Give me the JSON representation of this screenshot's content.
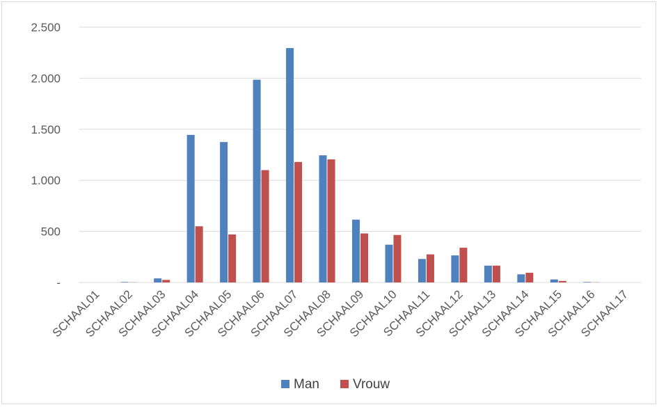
{
  "chart_data": {
    "type": "bar",
    "categories": [
      "SCHAAL01",
      "SCHAAL02",
      "SCHAAL03",
      "SCHAAL04",
      "SCHAAL05",
      "SCHAAL06",
      "SCHAAL07",
      "SCHAAL08",
      "SCHAAL09",
      "SCHAAL10",
      "SCHAAL11",
      "SCHAAL12",
      "SCHAAL13",
      "SCHAAL14",
      "SCHAAL15",
      "SCHAAL16",
      "SCHAAL17"
    ],
    "series": [
      {
        "name": "Man",
        "color": "#4f81bd",
        "values": [
          0,
          5,
          40,
          1445,
          1375,
          1985,
          2295,
          1245,
          615,
          370,
          230,
          265,
          165,
          80,
          30,
          5,
          0
        ]
      },
      {
        "name": "Vrouw",
        "color": "#c0504d",
        "values": [
          0,
          2,
          25,
          550,
          470,
          1100,
          1180,
          1205,
          480,
          465,
          275,
          340,
          165,
          95,
          15,
          2,
          0
        ]
      }
    ],
    "yticks": [
      0,
      500,
      1000,
      1500,
      2000,
      2500
    ],
    "ytick_labels": [
      "-",
      "500",
      "1.000",
      "1.500",
      "2.000",
      "2.500"
    ],
    "ylim": [
      0,
      2500
    ],
    "grid": true,
    "legend_position": "bottom",
    "gridline_color": "#d9d9d9"
  }
}
